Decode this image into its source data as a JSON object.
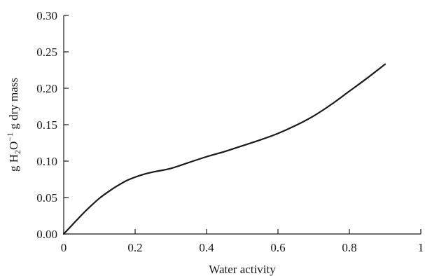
{
  "chart_data": {
    "type": "line",
    "title": "",
    "xlabel": "Water activity",
    "ylabel": {
      "prefix": "g H",
      "sub": "2",
      "mid": "O",
      "sup": "−1",
      "suffix": " g dry mass"
    },
    "xlim": [
      0,
      1
    ],
    "ylim": [
      0,
      0.3
    ],
    "x_ticks": [
      0,
      0.2,
      0.4,
      0.6,
      0.8,
      1
    ],
    "x_tick_labels": [
      "0",
      "0.2",
      "0.4",
      "0.6",
      "0.8",
      "1"
    ],
    "y_ticks": [
      0,
      0.05,
      0.1,
      0.15,
      0.2,
      0.25,
      0.3
    ],
    "y_tick_labels": [
      "0.00",
      "0.05",
      "0.10",
      "0.15",
      "0.20",
      "0.25",
      "0.30"
    ],
    "grid": false,
    "series": [
      {
        "color": "#1a1a1a",
        "x": [
          0,
          0.025,
          0.05,
          0.075,
          0.1,
          0.125,
          0.15,
          0.175,
          0.2,
          0.225,
          0.25,
          0.3,
          0.35,
          0.4,
          0.45,
          0.5,
          0.55,
          0.6,
          0.65,
          0.7,
          0.75,
          0.8,
          0.85,
          0.9
        ],
        "y": [
          0,
          0.013,
          0.026,
          0.038,
          0.049,
          0.058,
          0.066,
          0.073,
          0.078,
          0.082,
          0.085,
          0.09,
          0.098,
          0.106,
          0.113,
          0.121,
          0.129,
          0.138,
          0.149,
          0.162,
          0.178,
          0.196,
          0.214,
          0.233
        ]
      }
    ]
  }
}
